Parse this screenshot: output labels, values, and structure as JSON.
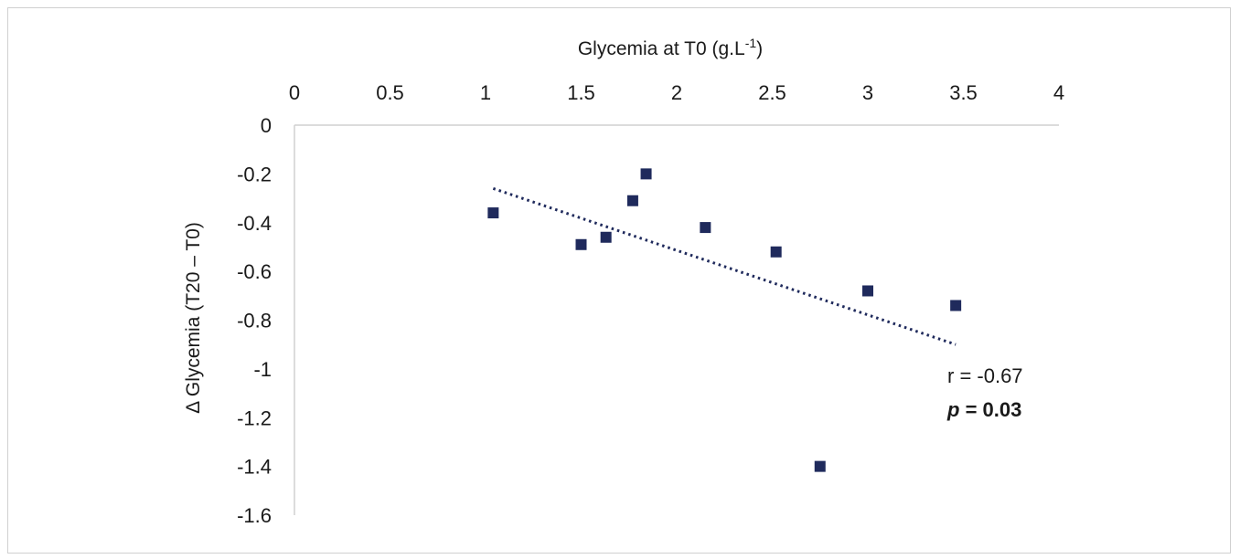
{
  "chart_data": {
    "type": "scatter",
    "xlabel": "Glycemia at T0 (g.L",
    "xlabel_superscript": "-1",
    "xlabel_suffix": ")",
    "ylabel": "Δ Glycemia (T20 – T0)",
    "xlim": [
      0,
      4
    ],
    "ylim": [
      -1.6,
      0
    ],
    "x_ticks": [
      "0",
      "0.5",
      "1",
      "1.5",
      "2",
      "2.5",
      "3",
      "3.5",
      "4"
    ],
    "y_ticks": [
      "0",
      "-0.2",
      "-0.4",
      "-0.6",
      "-0.8",
      "-1",
      "-1.2",
      "-1.4",
      "-1.6"
    ],
    "x_axis_position": "top",
    "grid": false,
    "marker_color": "#1f2a5c",
    "trendline_color": "#1f2a5c",
    "points": [
      {
        "x": 1.04,
        "y": -0.36
      },
      {
        "x": 1.5,
        "y": -0.49
      },
      {
        "x": 1.63,
        "y": -0.46
      },
      {
        "x": 1.77,
        "y": -0.31
      },
      {
        "x": 1.84,
        "y": -0.2
      },
      {
        "x": 2.15,
        "y": -0.42
      },
      {
        "x": 2.52,
        "y": -0.52
      },
      {
        "x": 2.75,
        "y": -1.4
      },
      {
        "x": 3.0,
        "y": -0.68
      },
      {
        "x": 3.46,
        "y": -0.74
      }
    ],
    "trendline": {
      "style": "dotted",
      "x": [
        1.04,
        3.46
      ],
      "y": [
        -0.26,
        -0.9
      ]
    },
    "annotations": {
      "r_text": "r = -0.67",
      "p_label": "p",
      "p_value": " = 0.03"
    }
  }
}
